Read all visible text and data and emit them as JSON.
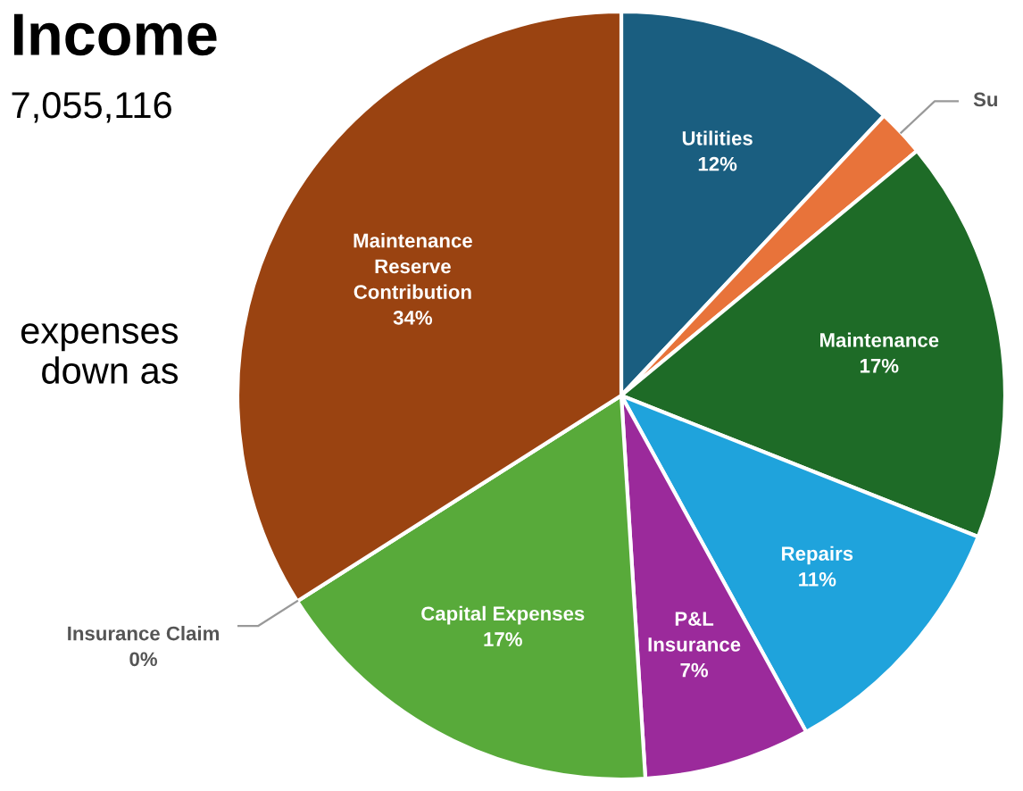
{
  "chart_data": {
    "type": "pie",
    "title": "Income",
    "subtitle": "7,055,116",
    "annotations": [
      "expenses\ndown as"
    ],
    "categories": [
      "Utilities",
      "Su",
      "Maintenance",
      "Repairs",
      "P&L\nInsurance",
      "Capital Expenses",
      "Insurance Claim",
      "Maintenance\nReserve\nContribution"
    ],
    "values": [
      12,
      2,
      17,
      11,
      7,
      17,
      0,
      34
    ],
    "value_labels": [
      "12%",
      null,
      "17%",
      "11%",
      "7%",
      "17%",
      "0%",
      "34%"
    ],
    "colors": [
      "#1a5e80",
      "#e8733a",
      "#1e6b27",
      "#1fa3dc",
      "#9b2a9b",
      "#58aa3a",
      "#8c8c8c",
      "#9a4311"
    ],
    "legend": false
  }
}
